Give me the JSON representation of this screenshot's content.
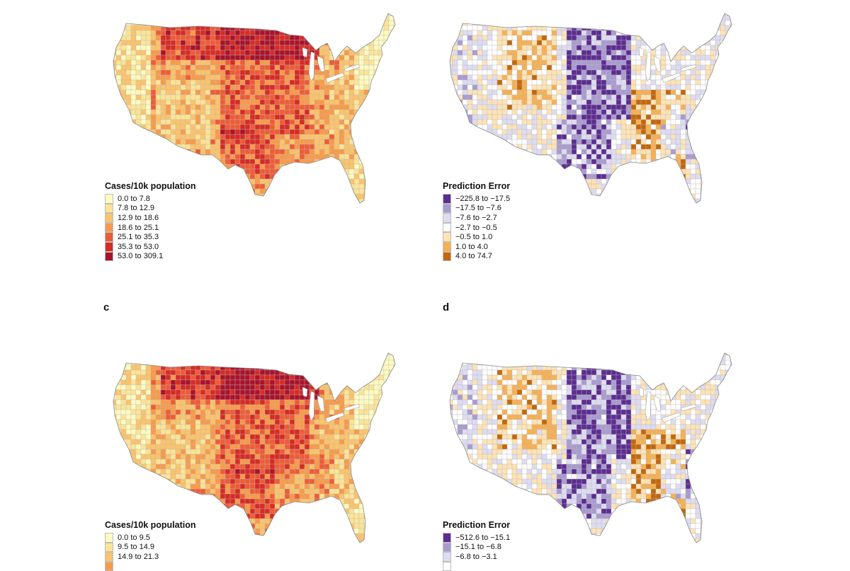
{
  "panels": [
    {
      "id": "a",
      "letter": "",
      "map_type": "cases",
      "legend": {
        "title": "Cases/10k population",
        "entries": [
          {
            "label": "0.0 to 7.8",
            "color": "#fdfbc2"
          },
          {
            "label": "7.8 to 12.9",
            "color": "#fce497"
          },
          {
            "label": "12.9 to 18.6",
            "color": "#fbc36c"
          },
          {
            "label": "18.6 to 25.1",
            "color": "#f89a4a"
          },
          {
            "label": "25.1 to 35.3",
            "color": "#ef5b36"
          },
          {
            "label": "35.3 to 53.0",
            "color": "#d82a24"
          },
          {
            "label": "53.0 to 309.1",
            "color": "#a9122c"
          }
        ]
      }
    },
    {
      "id": "b",
      "letter": "",
      "map_type": "error",
      "legend": {
        "title": "Prediction Error",
        "entries": [
          {
            "label": "−225.8 to −17.5",
            "color": "#5c2d91"
          },
          {
            "label": "−17.5 to −7.6",
            "color": "#a99bd0"
          },
          {
            "label": "−7.6 to −2.7",
            "color": "#dedcf0"
          },
          {
            "label": "−2.7 to −0.5",
            "color": "#ffffff"
          },
          {
            "label": "−0.5 to 1.0",
            "color": "#fde3b5"
          },
          {
            "label": "1.0 to 4.0",
            "color": "#f6b053"
          },
          {
            "label": "4.0 to 74.7",
            "color": "#c36709"
          }
        ]
      }
    },
    {
      "id": "c",
      "letter": "c",
      "map_type": "cases",
      "legend": {
        "title": "Cases/10k population",
        "entries": [
          {
            "label": "0.0 to 9.5",
            "color": "#fdfbc2"
          },
          {
            "label": "9.5 to 14.9",
            "color": "#fce497"
          },
          {
            "label": "14.9 to 21.3",
            "color": "#fbc36c"
          },
          {
            "label": "",
            "color": "#f89a4a"
          }
        ]
      }
    },
    {
      "id": "d",
      "letter": "d",
      "map_type": "error",
      "legend": {
        "title": "Prediction Error",
        "entries": [
          {
            "label": "−512.6 to −15.1",
            "color": "#5c2d91"
          },
          {
            "label": "−15.1 to −6.8",
            "color": "#a99bd0"
          },
          {
            "label": "−6.8 to −3.1",
            "color": "#dedcf0"
          },
          {
            "label": "",
            "color": "#ffffff"
          }
        ]
      }
    }
  ]
}
